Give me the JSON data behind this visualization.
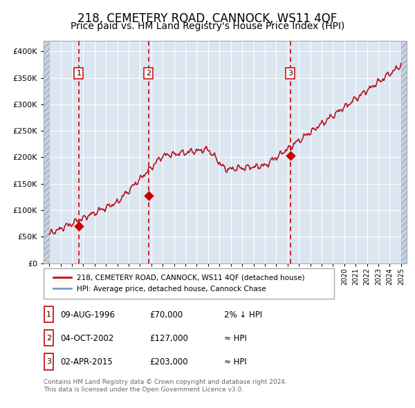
{
  "title": "218, CEMETERY ROAD, CANNOCK, WS11 4QF",
  "subtitle": "Price paid vs. HM Land Registry's House Price Index (HPI)",
  "legend_line1": "218, CEMETERY ROAD, CANNOCK, WS11 4QF (detached house)",
  "legend_line2": "HPI: Average price, detached house, Cannock Chase",
  "table_rows": [
    {
      "num": "1",
      "date": "09-AUG-1996",
      "price": "£70,000",
      "relation": "2% ↓ HPI"
    },
    {
      "num": "2",
      "date": "04-OCT-2002",
      "price": "£127,000",
      "relation": "≈ HPI"
    },
    {
      "num": "3",
      "date": "02-APR-2015",
      "price": "£203,000",
      "relation": "≈ HPI"
    }
  ],
  "footer": "Contains HM Land Registry data © Crown copyright and database right 2024.\nThis data is licensed under the Open Government Licence v3.0.",
  "sale_dates": [
    1996.6,
    2002.75,
    2015.25
  ],
  "sale_prices": [
    70000,
    127000,
    203000
  ],
  "vline_dates": [
    1996.6,
    2002.75,
    2015.25
  ],
  "ylim": [
    0,
    420000
  ],
  "xlim_start": 1993.5,
  "xlim_end": 2025.5,
  "data_start": 1994.0,
  "data_end": 2025.0,
  "plot_bg_color": "#dce6f1",
  "red_line_color": "#cc0000",
  "blue_line_color": "#7799cc",
  "vline_color": "#cc0000",
  "sale_marker_color": "#cc0000",
  "title_fontsize": 12,
  "subtitle_fontsize": 10,
  "num_boxes": [
    "1",
    "2",
    "3"
  ]
}
